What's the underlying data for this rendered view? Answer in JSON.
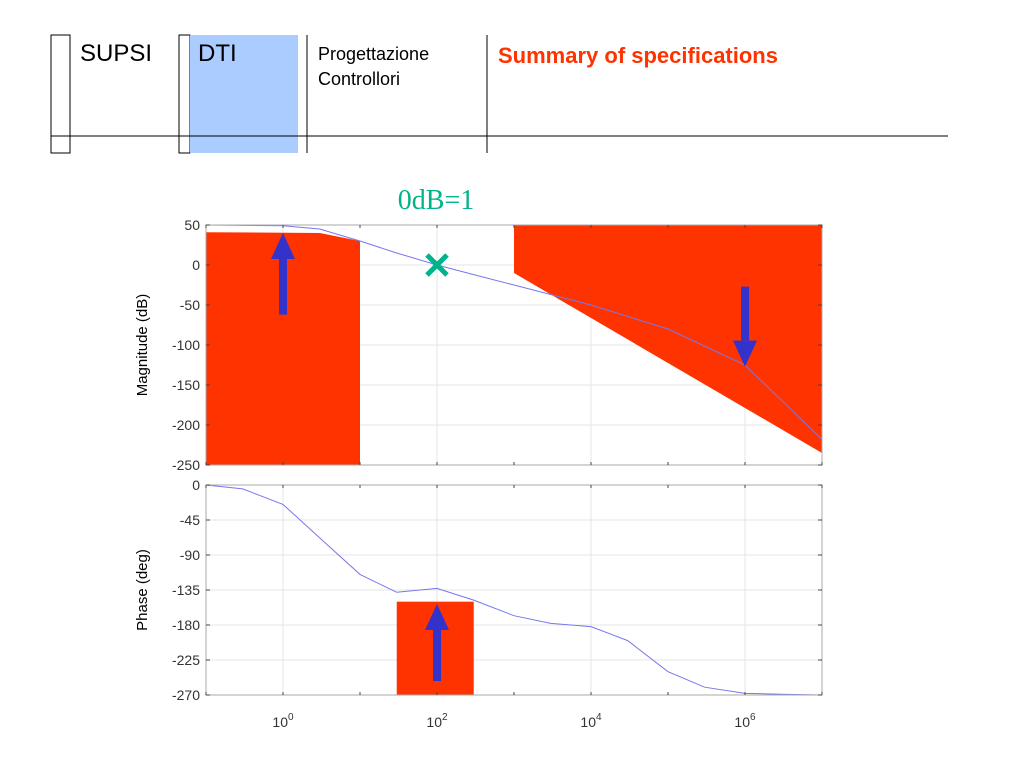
{
  "header": {
    "institution": "SUPSI",
    "department": "DTI",
    "course": "Progettazione\nControllori",
    "title": "Summary of specifications",
    "dti_highlight_color": "#aaccff"
  },
  "annotation": {
    "text": "0dB=1",
    "color": "#00b38a",
    "marker": "cross-icon"
  },
  "colors": {
    "constraint": "#ff3300",
    "arrow": "#3333cc",
    "curve": "#7777ee"
  },
  "chart_data": [
    {
      "type": "line",
      "plot": "bode-magnitude",
      "ylabel": "Magnitude (dB)",
      "xscale": "log",
      "xlim": [
        0.1,
        10000000
      ],
      "ylim": [
        -250,
        50
      ],
      "yticks": [
        50,
        0,
        -50,
        -100,
        -150,
        -200,
        -250
      ],
      "grid": true,
      "series": [
        {
          "x": [
            0.1,
            1,
            3,
            10,
            30,
            100,
            300,
            1000,
            10000,
            100000,
            1000000,
            10000000
          ],
          "y": [
            50,
            49,
            45,
            30,
            15,
            0,
            -12,
            -25,
            -50,
            -80,
            -125,
            -218
          ]
        }
      ],
      "marker": {
        "x": 100,
        "y": 0
      },
      "constraints": [
        {
          "region": "low-frequency-lower-bound",
          "x": [
            0.1,
            3,
            10,
            10,
            0.1
          ],
          "y": [
            41,
            40,
            30,
            -250,
            -250
          ],
          "arrow": "up"
        },
        {
          "region": "high-frequency-upper-bound",
          "x": [
            1000,
            10000000,
            10000000,
            1000
          ],
          "y": [
            50,
            50,
            -235,
            -10
          ],
          "arrow": "down"
        }
      ]
    },
    {
      "type": "line",
      "plot": "bode-phase",
      "ylabel": "Phase (deg)",
      "xscale": "log",
      "xlim": [
        0.1,
        10000000
      ],
      "ylim": [
        -270,
        0
      ],
      "yticks": [
        0,
        -45,
        -90,
        -135,
        -180,
        -225,
        -270
      ],
      "xtick_labels": [
        {
          "x": 1,
          "base": "10",
          "exp": "0"
        },
        {
          "x": 100,
          "base": "10",
          "exp": "2"
        },
        {
          "x": 10000,
          "base": "10",
          "exp": "4"
        },
        {
          "x": 1000000,
          "base": "10",
          "exp": "6"
        }
      ],
      "grid": true,
      "series": [
        {
          "x": [
            0.1,
            0.3,
            1,
            3,
            10,
            30,
            100,
            300,
            1000,
            3000,
            10000,
            30000,
            100000,
            300000,
            1000000,
            3000000,
            10000000
          ],
          "y": [
            0,
            -5,
            -25,
            -68,
            -115,
            -138,
            -133,
            -148,
            -168,
            -178,
            -182,
            -200,
            -240,
            -260,
            -268,
            -269,
            -270
          ]
        }
      ],
      "constraints": [
        {
          "region": "phase-margin-bound",
          "x": [
            30,
            300
          ],
          "y": [
            -150,
            -270
          ],
          "arrow": "up"
        }
      ]
    }
  ]
}
